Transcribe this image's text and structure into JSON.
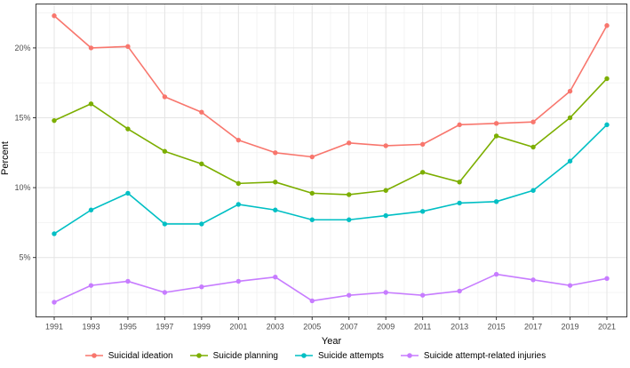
{
  "chart_data": {
    "type": "line",
    "title": "",
    "xlabel": "Year",
    "ylabel": "Percent",
    "x": [
      1991,
      1993,
      1995,
      1997,
      1999,
      2001,
      2003,
      2005,
      2007,
      2009,
      2011,
      2013,
      2015,
      2017,
      2019,
      2021
    ],
    "y_ticks": [
      5,
      10,
      15,
      20
    ],
    "y_tick_labels": [
      "5%",
      "10%",
      "15%",
      "20%"
    ],
    "y_minor_ticks": [
      2.5,
      7.5,
      12.5,
      17.5,
      22.5
    ],
    "ylim": [
      0.8,
      23.1
    ],
    "grid": "major-and-minor",
    "legend_position": "bottom",
    "panel_border_color": "#3c3c3c",
    "major_grid_color": "#e4e4e4",
    "minor_grid_color": "#f1f1f1",
    "tick_label_color": "#4d4d4d",
    "series": [
      {
        "name": "Suicidal ideation",
        "color": "#f8766d",
        "values": [
          22.3,
          20.0,
          20.1,
          16.5,
          15.4,
          13.4,
          12.5,
          12.2,
          13.2,
          13.0,
          13.1,
          14.5,
          14.6,
          14.7,
          16.9,
          21.6
        ]
      },
      {
        "name": "Suicide planning",
        "color": "#7cae00",
        "values": [
          14.8,
          16.0,
          14.2,
          12.6,
          11.7,
          10.3,
          10.4,
          9.6,
          9.5,
          9.8,
          11.1,
          10.4,
          13.7,
          12.9,
          15.0,
          17.8
        ]
      },
      {
        "name": "Suicide attempts",
        "color": "#00bfc4",
        "values": [
          6.7,
          8.4,
          9.6,
          7.4,
          7.4,
          8.8,
          8.4,
          7.7,
          7.7,
          8.0,
          8.3,
          8.9,
          9.0,
          9.8,
          11.9,
          14.5
        ]
      },
      {
        "name": "Suicide attempt-related injuries",
        "color": "#c77cff",
        "values": [
          1.8,
          3.0,
          3.3,
          2.5,
          2.9,
          3.3,
          3.6,
          1.9,
          2.3,
          2.5,
          2.3,
          2.6,
          3.8,
          3.4,
          3.0,
          3.5
        ]
      }
    ]
  }
}
